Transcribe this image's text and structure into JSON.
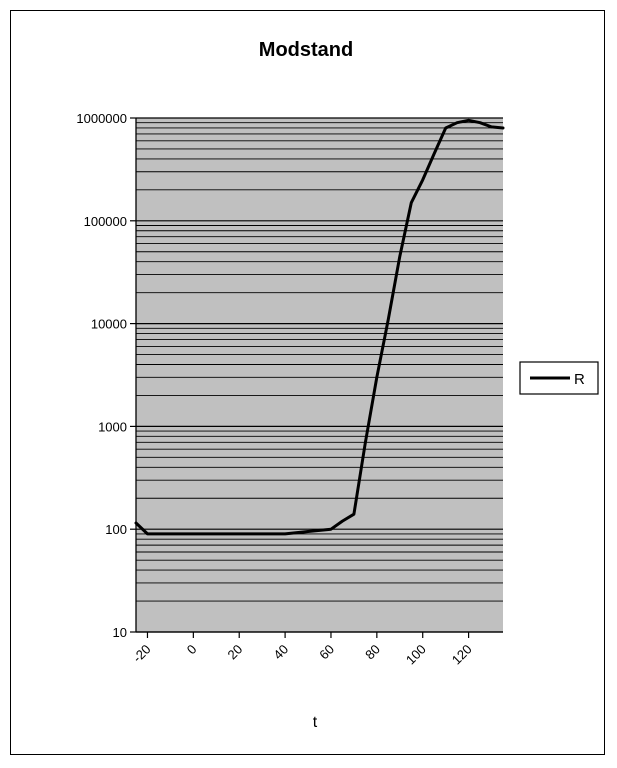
{
  "chart_data": {
    "type": "line",
    "title": "Modstand",
    "xlabel": "t",
    "ylabel": "",
    "xlim": [
      -25,
      135
    ],
    "ylim": [
      10,
      1000000
    ],
    "y_scale": "log",
    "x_ticks": [
      -20,
      0,
      20,
      40,
      60,
      80,
      100,
      120
    ],
    "x_tick_labels": [
      "-20",
      "0",
      "20",
      "40",
      "60",
      "80",
      "100",
      "120"
    ],
    "y_ticks": [
      10,
      100,
      1000,
      10000,
      100000,
      1000000
    ],
    "y_tick_labels": [
      "10",
      "100",
      "1000",
      "10000",
      "100000",
      "1000000"
    ],
    "grid": true,
    "legend_position": "right",
    "colors": {
      "line": "#000000",
      "plot_bg": "#c0c0c0",
      "grid": "#000000"
    },
    "series": [
      {
        "name": "R",
        "x": [
          -25,
          -20,
          -10,
          0,
          10,
          20,
          30,
          40,
          50,
          60,
          65,
          70,
          75,
          80,
          85,
          90,
          95,
          100,
          105,
          110,
          115,
          120,
          125,
          130,
          135
        ],
        "y": [
          115,
          90,
          90,
          90,
          90,
          90,
          90,
          90,
          95,
          100,
          120,
          140,
          700,
          3000,
          11000,
          45000,
          150000,
          250000,
          450000,
          800000,
          900000,
          950000,
          900000,
          820000,
          800000
        ]
      }
    ]
  }
}
